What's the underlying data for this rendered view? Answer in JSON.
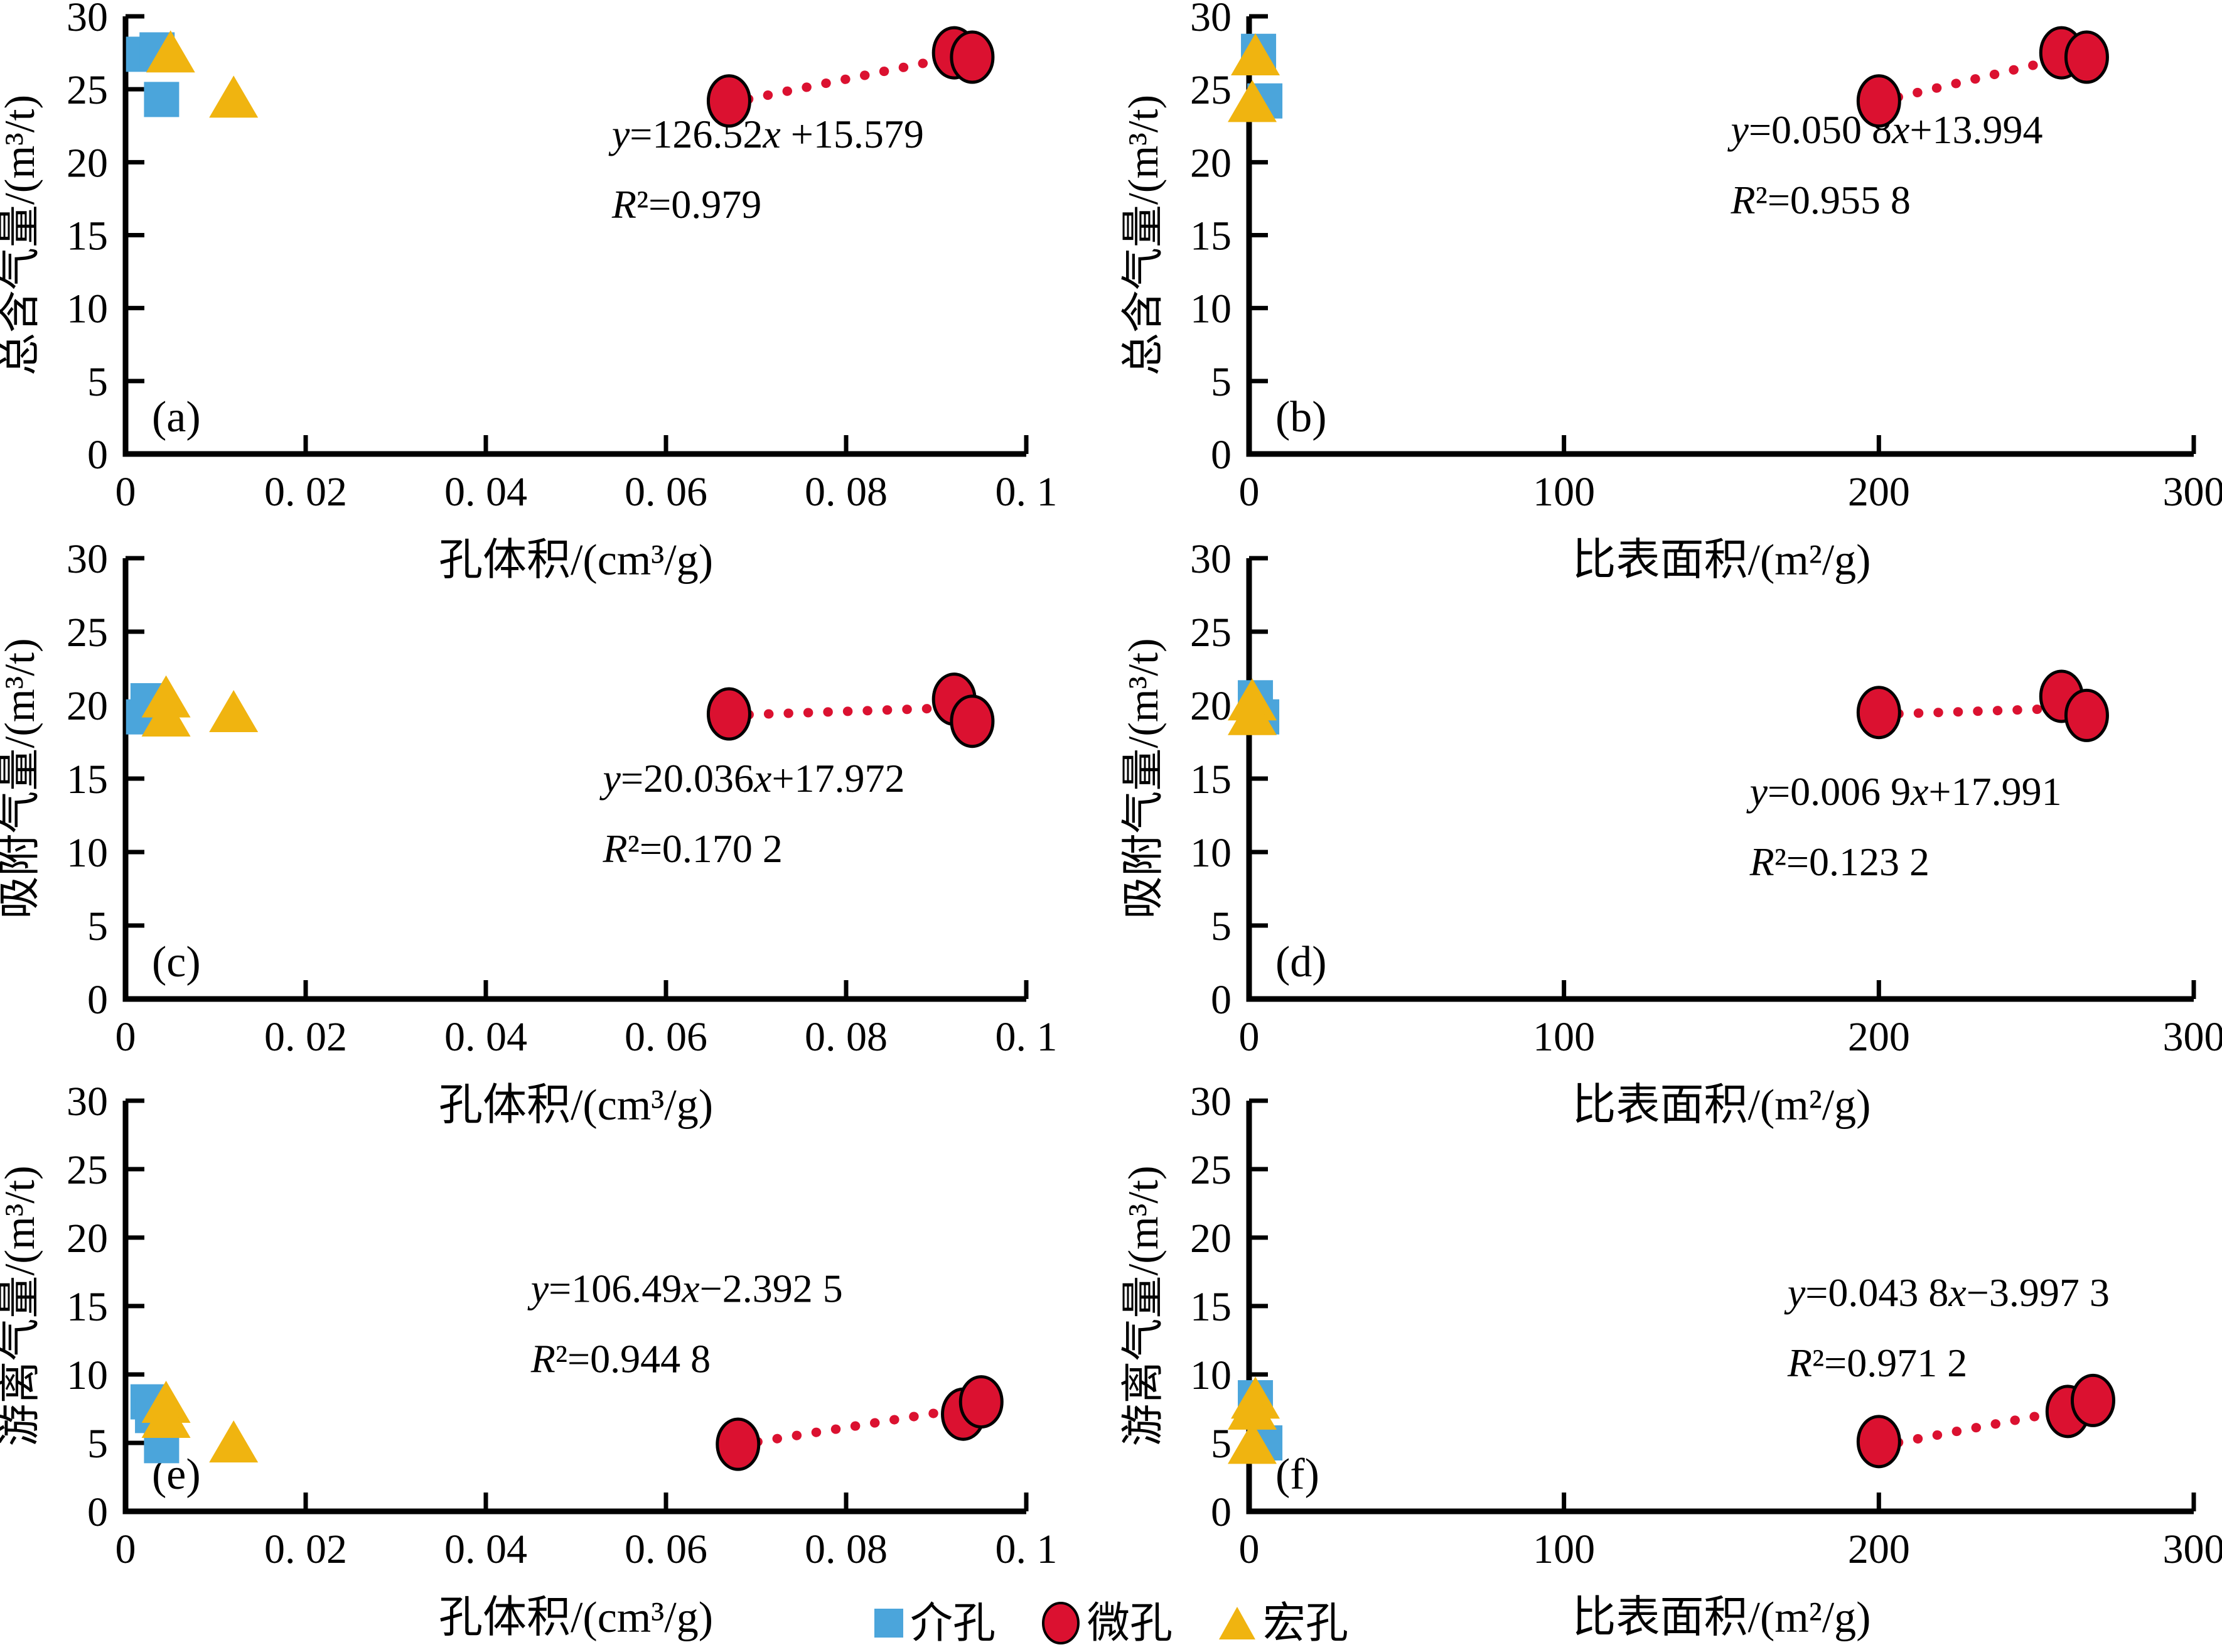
{
  "figure": {
    "colors": {
      "mesopore_blue": "#4BA5DB",
      "micropore_red": "#DB1130",
      "macropore_yellow": "#F0B410",
      "trend_red": "#DB1130",
      "axis_black": "#000000"
    },
    "legend": [
      {
        "label": "介孔",
        "marker": "square",
        "color": "#4BA5DB"
      },
      {
        "label": "微孔",
        "marker": "circle",
        "color": "#DB1130"
      },
      {
        "label": "宏孔",
        "marker": "triangle",
        "color": "#F0B410"
      }
    ]
  },
  "chart_data": [
    {
      "id": "a",
      "tag": "(a)",
      "type": "scatter",
      "xlabel": "孔体积/(cm³/g)",
      "ylabel": "总含气量/(m³/t)",
      "xlim": [
        0,
        0.1
      ],
      "ylim": [
        0,
        30
      ],
      "xticks": [
        0,
        0.02,
        0.04,
        0.06,
        0.08,
        0.1
      ],
      "xtick_labels": [
        "0",
        "0. 02",
        "0. 04",
        "0. 06",
        "0. 08",
        "0. 1"
      ],
      "yticks": [
        0,
        5,
        10,
        15,
        20,
        25,
        30
      ],
      "equation": "y=126.52x +15.579",
      "r_squared": "R²=0.979",
      "eq_fx": 0.54,
      "eq_fy": 0.3,
      "series": [
        {
          "name": "介孔",
          "marker": "square",
          "color": "#4BA5DB",
          "points": [
            [
              0.002,
              27.4
            ],
            [
              0.0035,
              27.7
            ],
            [
              0.004,
              24.3
            ]
          ]
        },
        {
          "name": "宏孔",
          "marker": "triangle",
          "color": "#F0B410",
          "points": [
            [
              0.005,
              27.4
            ],
            [
              0.012,
              24.3
            ]
          ]
        },
        {
          "name": "微孔",
          "marker": "circle",
          "color": "#DB1130",
          "points": [
            [
              0.067,
              24.2
            ],
            [
              0.092,
              27.5
            ],
            [
              0.094,
              27.2
            ]
          ],
          "trend": {
            "x1": 0.067,
            "y1": 24.05,
            "x2": 0.0945,
            "y2": 27.53
          }
        }
      ]
    },
    {
      "id": "b",
      "tag": "(b)",
      "type": "scatter",
      "xlabel": "比表面积/(m²/g)",
      "ylabel": "总含气量/(m³/t)",
      "xlim": [
        0,
        300
      ],
      "ylim": [
        0,
        30
      ],
      "xticks": [
        0,
        100,
        200,
        300
      ],
      "xtick_labels": [
        "0",
        "100",
        "200",
        "300"
      ],
      "yticks": [
        0,
        5,
        10,
        15,
        20,
        25,
        30
      ],
      "equation": "y=0.050 8x+13.994",
      "r_squared": "R²=0.955 8",
      "eq_fx": 0.51,
      "eq_fy": 0.29,
      "series": [
        {
          "name": "介孔",
          "marker": "square",
          "color": "#4BA5DB",
          "points": [
            [
              3,
              27.6
            ],
            [
              5,
              24.2
            ]
          ]
        },
        {
          "name": "宏孔",
          "marker": "triangle",
          "color": "#F0B410",
          "points": [
            [
              2,
              27.2
            ],
            [
              1,
              24.0
            ]
          ]
        },
        {
          "name": "微孔",
          "marker": "circle",
          "color": "#DB1130",
          "points": [
            [
              200,
              24.2
            ],
            [
              258,
              27.5
            ],
            [
              266,
              27.2
            ]
          ],
          "trend": {
            "x1": 200,
            "y1": 24.15,
            "x2": 267,
            "y2": 27.56
          }
        }
      ]
    },
    {
      "id": "c",
      "tag": "(c)",
      "type": "scatter",
      "xlabel": "孔体积/(cm³/g)",
      "ylabel": "吸附气量/(m³/t)",
      "xlim": [
        0,
        0.1
      ],
      "ylim": [
        0,
        30
      ],
      "xticks": [
        0,
        0.02,
        0.04,
        0.06,
        0.08,
        0.1
      ],
      "xtick_labels": [
        "0",
        "0. 02",
        "0. 04",
        "0. 06",
        "0. 08",
        "0. 1"
      ],
      "yticks": [
        0,
        5,
        10,
        15,
        20,
        25,
        30
      ],
      "equation": "y=20.036x+17.972",
      "r_squared": "R²=0.170 2",
      "eq_fx": 0.53,
      "eq_fy": 0.53,
      "series": [
        {
          "name": "介孔",
          "marker": "square",
          "color": "#4BA5DB",
          "points": [
            [
              0.0025,
              20.3
            ],
            [
              0.002,
              19.2
            ]
          ]
        },
        {
          "name": "宏孔",
          "marker": "triangle",
          "color": "#F0B410",
          "points": [
            [
              0.0045,
              20.4
            ],
            [
              0.0045,
              19.1
            ],
            [
              0.012,
              19.4
            ]
          ]
        },
        {
          "name": "微孔",
          "marker": "circle",
          "color": "#DB1130",
          "points": [
            [
              0.067,
              19.4
            ],
            [
              0.092,
              20.4
            ],
            [
              0.094,
              18.9
            ]
          ],
          "trend": {
            "x1": 0.067,
            "y1": 19.31,
            "x2": 0.095,
            "y2": 19.88
          }
        }
      ]
    },
    {
      "id": "d",
      "tag": "(d)",
      "type": "scatter",
      "xlabel": "比表面积/(m²/g)",
      "ylabel": "吸附气量/(m³/t)",
      "xlim": [
        0,
        300
      ],
      "ylim": [
        0,
        30
      ],
      "xticks": [
        0,
        100,
        200,
        300
      ],
      "xtick_labels": [
        "0",
        "100",
        "200",
        "300"
      ],
      "yticks": [
        0,
        5,
        10,
        15,
        20,
        25,
        30
      ],
      "equation": "y=0.006 9x+17.991",
      "r_squared": "R²=0.123 2",
      "eq_fx": 0.53,
      "eq_fy": 0.56,
      "series": [
        {
          "name": "介孔",
          "marker": "square",
          "color": "#4BA5DB",
          "points": [
            [
              2,
              20.5
            ],
            [
              4,
              19.2
            ]
          ]
        },
        {
          "name": "宏孔",
          "marker": "triangle",
          "color": "#F0B410",
          "points": [
            [
              1,
              20.2
            ],
            [
              1,
              19.2
            ]
          ]
        },
        {
          "name": "微孔",
          "marker": "circle",
          "color": "#DB1130",
          "points": [
            [
              200,
              19.5
            ],
            [
              258,
              20.6
            ],
            [
              266,
              19.3
            ]
          ],
          "trend": {
            "x1": 200,
            "y1": 19.37,
            "x2": 267,
            "y2": 19.83
          }
        }
      ]
    },
    {
      "id": "e",
      "tag": "(e)",
      "type": "scatter",
      "xlabel": "孔体积/(cm³/g)",
      "ylabel": "游离气量/(m³/t)",
      "xlim": [
        0,
        0.1
      ],
      "ylim": [
        0,
        30
      ],
      "xticks": [
        0,
        0.02,
        0.04,
        0.06,
        0.08,
        0.1
      ],
      "xtick_labels": [
        "0",
        "0. 02",
        "0. 04",
        "0. 06",
        "0. 08",
        "0. 1"
      ],
      "yticks": [
        0,
        5,
        10,
        15,
        20,
        25,
        30
      ],
      "equation": "y=106.49x−2.392 5",
      "r_squared": "R²=0.944 8",
      "eq_fx": 0.45,
      "eq_fy": 0.49,
      "series": [
        {
          "name": "介孔",
          "marker": "square",
          "color": "#4BA5DB",
          "points": [
            [
              0.0025,
              8.0
            ],
            [
              0.003,
              7.0
            ],
            [
              0.004,
              4.8
            ]
          ]
        },
        {
          "name": "宏孔",
          "marker": "triangle",
          "color": "#F0B410",
          "points": [
            [
              0.0045,
              7.8
            ],
            [
              0.0045,
              6.7
            ],
            [
              0.012,
              4.9
            ]
          ]
        },
        {
          "name": "微孔",
          "marker": "circle",
          "color": "#DB1130",
          "points": [
            [
              0.068,
              4.9
            ],
            [
              0.093,
              7.1
            ],
            [
              0.095,
              8.0
            ]
          ],
          "trend": {
            "x1": 0.068,
            "y1": 4.85,
            "x2": 0.095,
            "y2": 7.72
          }
        }
      ]
    },
    {
      "id": "f",
      "tag": "(f)",
      "type": "scatter",
      "xlabel": "比表面积/(m²/g)",
      "ylabel": "游离气量/(m³/t)",
      "xlim": [
        0,
        300
      ],
      "ylim": [
        0,
        30
      ],
      "xticks": [
        0,
        100,
        200,
        300
      ],
      "xtick_labels": [
        "0",
        "100",
        "200",
        "300"
      ],
      "yticks": [
        0,
        5,
        10,
        15,
        20,
        25,
        30
      ],
      "equation": "y=0.043 8x−3.997 3",
      "r_squared": "R²=0.971 2",
      "eq_fx": 0.57,
      "eq_fy": 0.5,
      "series": [
        {
          "name": "介孔",
          "marker": "square",
          "color": "#4BA5DB",
          "points": [
            [
              2,
              8.3
            ],
            [
              5,
              5.0
            ]
          ]
        },
        {
          "name": "宏孔",
          "marker": "triangle",
          "color": "#F0B410",
          "points": [
            [
              2,
              8.1
            ],
            [
              1,
              7.3
            ],
            [
              1,
              4.8
            ]
          ]
        },
        {
          "name": "微孔",
          "marker": "circle",
          "color": "#DB1130",
          "points": [
            [
              200,
              5.1
            ],
            [
              260,
              7.3
            ],
            [
              268,
              8.1
            ]
          ],
          "trend": {
            "x1": 200,
            "y1": 4.76,
            "x2": 268,
            "y2": 7.74
          }
        }
      ]
    }
  ]
}
